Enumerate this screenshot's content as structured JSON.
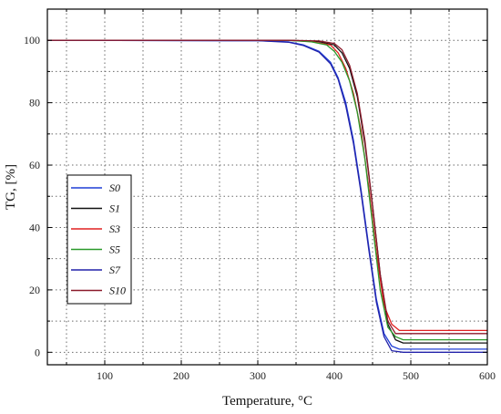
{
  "chart_data": {
    "type": "line",
    "title": "",
    "xlabel": "Temperature, °C",
    "ylabel": "TG, [%]",
    "xlim": [
      25,
      600
    ],
    "ylim": [
      -4,
      110
    ],
    "xticks": [
      100,
      200,
      300,
      400,
      500,
      600
    ],
    "yticks": [
      0,
      20,
      40,
      60,
      80,
      100
    ],
    "grid": true,
    "legend_position": "left",
    "series": [
      {
        "name": "S0",
        "color": "#1f3fd6",
        "x": [
          25,
          300,
          340,
          360,
          380,
          395,
          405,
          415,
          425,
          435,
          445,
          455,
          465,
          475,
          485,
          500,
          600
        ],
        "y": [
          100,
          99.9,
          99.5,
          98.5,
          96.5,
          93,
          88,
          80,
          68,
          52,
          34,
          17,
          6,
          2,
          1,
          1,
          1
        ]
      },
      {
        "name": "S1",
        "color": "#111111",
        "x": [
          25,
          340,
          380,
          400,
          410,
          420,
          430,
          440,
          450,
          460,
          470,
          480,
          490,
          500,
          600
        ],
        "y": [
          100,
          100,
          99.6,
          98.5,
          96,
          91,
          82,
          67,
          47,
          25,
          9,
          4,
          3,
          3,
          3
        ]
      },
      {
        "name": "S3",
        "color": "#e02020",
        "x": [
          25,
          340,
          370,
          395,
          405,
          415,
          425,
          435,
          445,
          455,
          465,
          475,
          485,
          500,
          600
        ],
        "y": [
          100,
          100,
          99.6,
          98.5,
          96,
          91,
          83,
          71,
          53,
          32,
          15,
          9,
          7,
          7,
          7
        ]
      },
      {
        "name": "S5",
        "color": "#2a9a2a",
        "x": [
          25,
          340,
          370,
          390,
          400,
          410,
          420,
          430,
          440,
          450,
          460,
          470,
          480,
          490,
          600
        ],
        "y": [
          100,
          100,
          99.5,
          98.5,
          96.5,
          93,
          87,
          77,
          62,
          41,
          20,
          8,
          5,
          4,
          4
        ]
      },
      {
        "name": "S7",
        "color": "#2222aa",
        "x": [
          25,
          300,
          340,
          360,
          380,
          395,
          405,
          415,
          425,
          435,
          445,
          455,
          465,
          475,
          490,
          600
        ],
        "y": [
          100,
          99.9,
          99.4,
          98.3,
          96.2,
          92.5,
          87.5,
          79,
          67,
          51,
          33,
          16,
          5,
          0.5,
          0,
          0
        ]
      },
      {
        "name": "S10",
        "color": "#8b1a2b",
        "x": [
          25,
          340,
          380,
          400,
          410,
          420,
          430,
          440,
          450,
          460,
          470,
          480,
          490,
          600
        ],
        "y": [
          100,
          100,
          99.8,
          99,
          97,
          92,
          83,
          68,
          47,
          25,
          10,
          6,
          6,
          6
        ]
      }
    ]
  }
}
